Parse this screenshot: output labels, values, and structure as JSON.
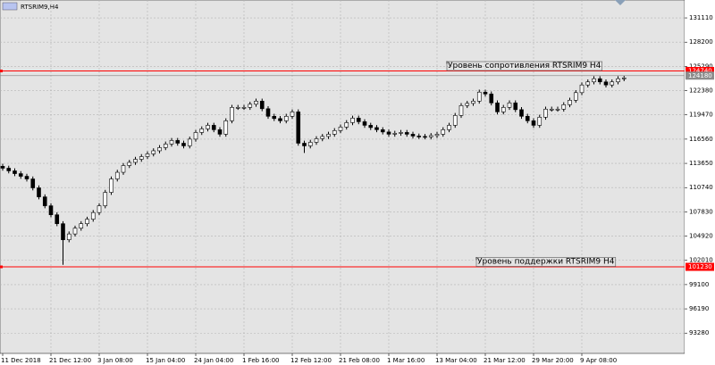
{
  "chart_data": {
    "type": "candlestick",
    "title": "RTSRIM9,H4",
    "categories": [
      "11 Dec 2018",
      null,
      null,
      null,
      null,
      null,
      null,
      null,
      "21 Dec 12:00",
      null,
      null,
      null,
      null,
      null,
      null,
      null,
      "3 Jan 08:00",
      null,
      null,
      null,
      null,
      null,
      null,
      null,
      "15 Jan 04:00",
      null,
      null,
      null,
      null,
      null,
      null,
      null,
      "24 Jan 04:00",
      null,
      null,
      null,
      null,
      null,
      null,
      null,
      "1 Feb 16:00",
      null,
      null,
      null,
      null,
      null,
      null,
      null,
      "12 Feb 12:00",
      null,
      null,
      null,
      null,
      null,
      null,
      null,
      "21 Feb 08:00",
      null,
      null,
      null,
      null,
      null,
      null,
      null,
      "1 Mar 16:00",
      null,
      null,
      null,
      null,
      null,
      null,
      null,
      "13 Mar 04:00",
      null,
      null,
      null,
      null,
      null,
      null,
      null,
      "21 Mar 12:00",
      null,
      null,
      null,
      null,
      null,
      null,
      null,
      "29 Mar 20:00",
      null,
      null,
      null,
      null,
      null,
      null,
      null,
      "9 Apr 08:00",
      null,
      null,
      null,
      null,
      null,
      null,
      null
    ],
    "open": [
      113300,
      113070,
      112750,
      112420,
      112100,
      111780,
      110710,
      109630,
      108560,
      107480,
      106410,
      104480,
      105180,
      105870,
      106410,
      106950,
      107750,
      108560,
      110170,
      111780,
      112580,
      113390,
      113770,
      114140,
      114460,
      114790,
      115160,
      115540,
      115970,
      116400,
      116070,
      115750,
      116560,
      117360,
      117790,
      118220,
      117690,
      117150,
      118760,
      120370,
      120370,
      120370,
      120750,
      121120,
      120210,
      119300,
      119030,
      118760,
      119300,
      119830,
      116070,
      115750,
      116180,
      116610,
      116880,
      117150,
      117580,
      118010,
      118540,
      119080,
      118650,
      118220,
      117950,
      117690,
      117420,
      117150,
      117260,
      117360,
      117150,
      116930,
      116880,
      116830,
      116990,
      117150,
      117690,
      118220,
      119400,
      120590,
      120850,
      121120,
      122200,
      121980,
      120910,
      119830,
      120370,
      120910,
      120100,
      119300,
      118760,
      118220,
      119190,
      120160,
      120160,
      120160,
      120690,
      121230,
      122140,
      123060,
      123430,
      123810,
      123430,
      123060,
      123430,
      123810
    ],
    "high": [
      113600,
      113370,
      113050,
      112720,
      112400,
      112080,
      111010,
      109930,
      108860,
      107780,
      106710,
      105480,
      106170,
      106710,
      107250,
      108050,
      108860,
      110470,
      112080,
      112880,
      113690,
      114070,
      114440,
      114760,
      115090,
      115460,
      115840,
      116270,
      116700,
      116700,
      116370,
      116860,
      117660,
      118090,
      118520,
      118520,
      117990,
      119060,
      120670,
      120670,
      120670,
      121050,
      121420,
      121420,
      120510,
      119600,
      119330,
      119600,
      120130,
      120130,
      116370,
      116480,
      116910,
      117180,
      117450,
      117880,
      118310,
      118840,
      119380,
      119380,
      118950,
      118520,
      118250,
      117990,
      117720,
      117560,
      117660,
      117660,
      117450,
      117230,
      117180,
      117290,
      117450,
      117990,
      118520,
      119700,
      120890,
      121150,
      121420,
      122500,
      122500,
      122280,
      121210,
      120670,
      121210,
      121210,
      120400,
      119600,
      119060,
      119490,
      120460,
      120460,
      120460,
      120990,
      121530,
      122440,
      123360,
      123730,
      124110,
      124110,
      123730,
      123730,
      124110,
      124210
    ],
    "low": [
      112770,
      112450,
      112120,
      111800,
      111480,
      110410,
      109330,
      108260,
      107180,
      106110,
      101470,
      104180,
      104880,
      105570,
      106110,
      106650,
      107450,
      108260,
      109870,
      111480,
      112280,
      113090,
      113470,
      113840,
      114160,
      114490,
      114860,
      115240,
      115670,
      115770,
      115450,
      115450,
      116260,
      117060,
      117490,
      117390,
      116850,
      116850,
      118460,
      120070,
      120070,
      120070,
      120450,
      119910,
      119000,
      118730,
      118460,
      118460,
      119000,
      115770,
      114900,
      115450,
      115880,
      116310,
      116580,
      116850,
      117280,
      117710,
      118240,
      118350,
      117920,
      117650,
      117390,
      117120,
      116850,
      116850,
      116960,
      116850,
      116630,
      116580,
      116530,
      116530,
      116690,
      116850,
      117390,
      117920,
      119100,
      120290,
      120550,
      120820,
      121680,
      120610,
      119530,
      119530,
      120070,
      119800,
      119000,
      118460,
      117920,
      117920,
      118890,
      119860,
      119860,
      119860,
      120390,
      120930,
      121840,
      122760,
      123130,
      123130,
      122760,
      122760,
      123130,
      123510
    ],
    "close": [
      113070,
      112750,
      112420,
      112100,
      111780,
      110710,
      109630,
      108560,
      107480,
      106410,
      104480,
      105180,
      105870,
      106410,
      106950,
      107750,
      108560,
      110170,
      111780,
      112580,
      113390,
      113770,
      114140,
      114460,
      114790,
      115160,
      115540,
      115970,
      116400,
      116070,
      115750,
      116560,
      117360,
      117790,
      118220,
      117690,
      117150,
      118760,
      120370,
      120370,
      120370,
      120750,
      121120,
      120210,
      119300,
      119030,
      118760,
      119300,
      119830,
      116070,
      115750,
      116180,
      116610,
      116880,
      117150,
      117580,
      118010,
      118540,
      119080,
      118650,
      118220,
      117950,
      117690,
      117420,
      117150,
      117260,
      117360,
      117150,
      116930,
      116880,
      116830,
      116990,
      117150,
      117690,
      118220,
      119400,
      120590,
      120850,
      121120,
      122200,
      121980,
      120910,
      119830,
      120370,
      120910,
      120100,
      119300,
      118760,
      118220,
      119190,
      120160,
      120160,
      120160,
      120690,
      121230,
      122140,
      123060,
      123430,
      123810,
      123430,
      123060,
      123430,
      123810,
      123910
    ],
    "ylim": [
      90843,
      133258
    ],
    "yticks": [
      131110,
      128200,
      125290,
      122380,
      119470,
      116560,
      113650,
      110740,
      107830,
      104920,
      102010,
      99100,
      96190,
      93280
    ],
    "grid": true,
    "hlines": [
      {
        "value": 124740,
        "color": "#ff0000",
        "annotation": "Уровень сопротивления RTSRIM9 H4"
      },
      {
        "value": 101230,
        "color": "#ff0000",
        "annotation": "Уровень поддержки RTSRIM9 H4"
      }
    ],
    "current_price": 124180
  }
}
